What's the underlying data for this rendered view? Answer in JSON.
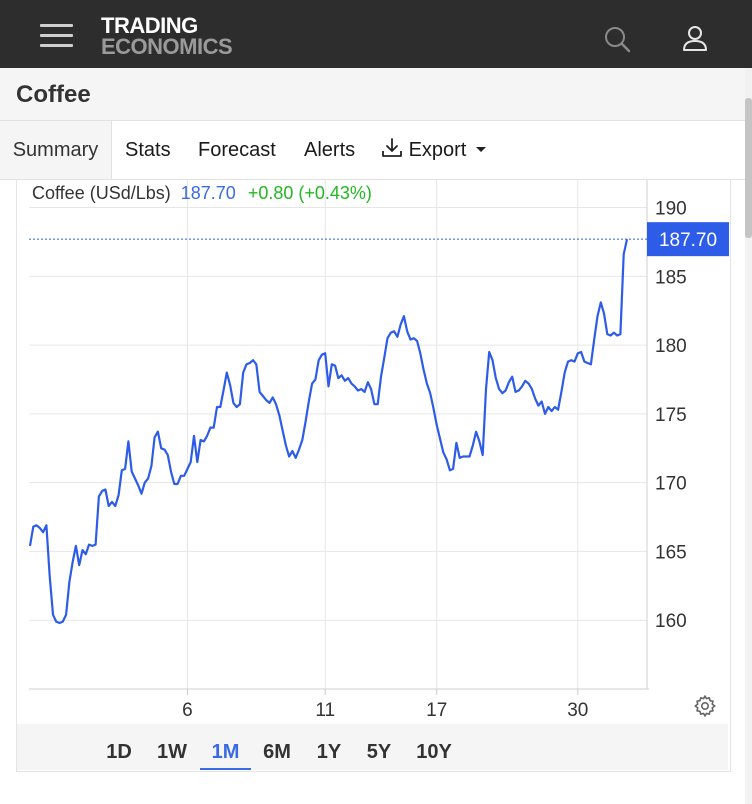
{
  "header": {
    "logo_line1": "TRADING",
    "logo_line2": "ECONOMICS",
    "menu_icon": "hamburger-menu-icon",
    "search_icon": "search-icon",
    "user_icon": "user-icon"
  },
  "page": {
    "title": "Coffee"
  },
  "tabs": [
    {
      "label": "Summary",
      "active": true
    },
    {
      "label": "Stats"
    },
    {
      "label": "Forecast"
    },
    {
      "label": "Alerts"
    },
    {
      "label": "Export",
      "icon": "download-icon",
      "dropdown": true
    }
  ],
  "quote": {
    "name": "Coffee (USd/Lbs)",
    "price": "187.70",
    "change": "+0.80 (+0.43%)",
    "price_color": "#3a6be6",
    "change_color": "#22b822"
  },
  "chart_data": {
    "type": "line",
    "series": [
      {
        "values": [
          165.4,
          166.8,
          166.9,
          166.7,
          166.4,
          166.9,
          163.2,
          160.4,
          159.9,
          159.8,
          159.9,
          160.4,
          162.8,
          164.2,
          165.4,
          164.0,
          165.1,
          164.8,
          165.5,
          165.4,
          165.5,
          169.0,
          169.4,
          169.5,
          168.3,
          168.6,
          168.3,
          169.1,
          170.9,
          171.0,
          173.0,
          170.8,
          170.3,
          169.8,
          169.2,
          170.0,
          170.3,
          171.2,
          173.3,
          173.7,
          172.5,
          172.4,
          172.0,
          170.8,
          169.9,
          169.9,
          170.5,
          170.5,
          171.0,
          171.5,
          173.4,
          171.5,
          173.1,
          173.0,
          173.4,
          174.0,
          174.0,
          175.5,
          175.5,
          176.7,
          178.0,
          177.1,
          175.8,
          175.5,
          175.7,
          178.0,
          178.6,
          178.7,
          178.9,
          178.6,
          176.6,
          176.3,
          176.0,
          175.8,
          176.2,
          175.7,
          174.9,
          173.8,
          172.7,
          171.9,
          172.3,
          171.8,
          172.4,
          173.1,
          174.4,
          175.9,
          177.2,
          177.5,
          178.9,
          179.3,
          179.4,
          177.0,
          178.6,
          178.5,
          177.6,
          177.8,
          177.4,
          177.6,
          177.2,
          177.0,
          176.7,
          176.8,
          176.6,
          177.3,
          176.8,
          175.7,
          175.7,
          177.7,
          179.1,
          180.5,
          180.9,
          181.0,
          180.6,
          181.5,
          182.1,
          181.0,
          180.4,
          180.5,
          180.3,
          179.4,
          178.2,
          177.2,
          176.5,
          175.4,
          174.2,
          173.2,
          172.2,
          171.7,
          170.9,
          171.0,
          172.9,
          171.8,
          171.9,
          171.9,
          171.9,
          172.7,
          173.7,
          173.0,
          172.0,
          176.8,
          179.5,
          178.9,
          177.6,
          176.8,
          176.5,
          176.7,
          177.3,
          177.7,
          176.6,
          176.7,
          177.0,
          177.4,
          177.2,
          176.8,
          176.1,
          175.6,
          175.9,
          175.0,
          175.5,
          175.2,
          175.5,
          175.3,
          176.6,
          178.0,
          178.8,
          178.9,
          178.8,
          179.4,
          179.5,
          178.8,
          178.7,
          178.6,
          180.4,
          182.1,
          183.1,
          182.3,
          180.8,
          180.7,
          180.9,
          180.7,
          180.8,
          186.6,
          187.7
        ],
        "color": "#2d5ce8"
      }
    ],
    "last_value": 187.7,
    "last_value_label": "187.70",
    "last_value_color": "#2d5ce8",
    "ylim": [
      155.0,
      192.0
    ],
    "yticks": [
      190,
      185,
      180,
      175,
      170,
      165,
      160
    ],
    "ytick_labels": [
      "190",
      "185",
      "180",
      "175",
      "170",
      "165",
      "160"
    ],
    "xticks": [
      {
        "label": "6",
        "index": 48
      },
      {
        "label": "11",
        "index": 90
      },
      {
        "label": "17",
        "index": 124
      },
      {
        "label": "30",
        "index": 167
      }
    ],
    "grid": true,
    "axis_side": "right"
  },
  "chart_settings_icon": "gear-icon",
  "ranges": [
    {
      "label": "1D"
    },
    {
      "label": "1W"
    },
    {
      "label": "1M",
      "active": true
    },
    {
      "label": "6M"
    },
    {
      "label": "1Y"
    },
    {
      "label": "5Y"
    },
    {
      "label": "10Y"
    }
  ]
}
